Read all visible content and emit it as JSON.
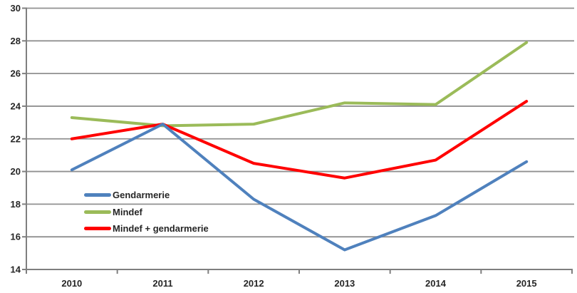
{
  "chart_data": {
    "type": "line",
    "title": "",
    "categories": [
      "2010",
      "2011",
      "2012",
      "2013",
      "2014",
      "2015"
    ],
    "series": [
      {
        "name": "Gendarmerie",
        "color": "#4F81BD",
        "values": [
          20.1,
          22.9,
          18.3,
          15.2,
          17.3,
          20.6
        ]
      },
      {
        "name": "Mindef",
        "color": "#9BBB59",
        "values": [
          23.3,
          22.8,
          22.9,
          24.2,
          24.1,
          27.9
        ]
      },
      {
        "name": "Mindef + gendarmerie",
        "color": "#FF0000",
        "values": [
          22.0,
          22.9,
          20.5,
          19.6,
          20.7,
          24.3
        ]
      }
    ],
    "ylim": [
      14,
      30
    ],
    "ytick_step": 2,
    "y_ticks": [
      "30",
      "28",
      "26",
      "24",
      "22",
      "20",
      "18",
      "16",
      "14"
    ],
    "xlabel": "",
    "ylabel": "",
    "grid": "horizontal",
    "legend_position": "inside-left",
    "gridline_color": "#909090",
    "axis_color": "#7F7F7F",
    "label_color": "#262626",
    "background_color": "#FFFFFF"
  }
}
